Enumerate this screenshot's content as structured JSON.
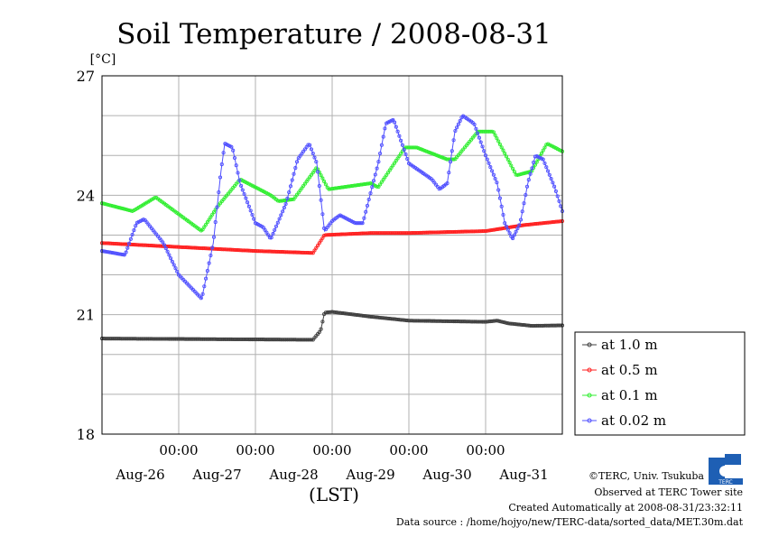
{
  "chart_data": {
    "type": "line",
    "title": "Soil Temperature / 2008-08-31",
    "y_unit": "[°C]",
    "xlabel": "(LST)",
    "ylim": [
      18,
      27
    ],
    "y_ticks": [
      "18",
      "21",
      "24",
      "27"
    ],
    "x_range_days": [
      0,
      6
    ],
    "x_time_labels": [
      "00:00",
      "00:00",
      "00:00",
      "00:00",
      "00:00"
    ],
    "x_date_labels": [
      "Aug-26",
      "Aug-27",
      "Aug-28",
      "Aug-29",
      "Aug-30",
      "Aug-31"
    ],
    "grid": true,
    "legend_position": "right",
    "series": [
      {
        "name": "at 1.0 m",
        "color": "#404040",
        "points": [
          [
            0.0,
            20.4
          ],
          [
            2.75,
            20.37
          ],
          [
            2.85,
            20.6
          ],
          [
            2.9,
            21.05
          ],
          [
            3.0,
            21.07
          ],
          [
            3.5,
            20.95
          ],
          [
            4.0,
            20.85
          ],
          [
            5.0,
            20.82
          ],
          [
            5.15,
            20.85
          ],
          [
            5.3,
            20.78
          ],
          [
            5.6,
            20.72
          ],
          [
            6.0,
            20.73
          ]
        ]
      },
      {
        "name": "at 0.5 m",
        "color": "#ff2020",
        "points": [
          [
            0.0,
            22.8
          ],
          [
            1.0,
            22.7
          ],
          [
            2.0,
            22.6
          ],
          [
            2.75,
            22.55
          ],
          [
            2.9,
            23.0
          ],
          [
            3.5,
            23.05
          ],
          [
            4.0,
            23.05
          ],
          [
            5.0,
            23.1
          ],
          [
            5.5,
            23.25
          ],
          [
            6.0,
            23.35
          ]
        ]
      },
      {
        "name": "at 0.1 m",
        "color": "#30ee30",
        "points": [
          [
            0.0,
            23.8
          ],
          [
            0.4,
            23.6
          ],
          [
            0.7,
            23.95
          ],
          [
            1.3,
            23.1
          ],
          [
            1.5,
            23.7
          ],
          [
            1.8,
            24.4
          ],
          [
            2.2,
            24.0
          ],
          [
            2.3,
            23.85
          ],
          [
            2.5,
            23.9
          ],
          [
            2.8,
            24.7
          ],
          [
            2.95,
            24.15
          ],
          [
            3.5,
            24.3
          ],
          [
            3.6,
            24.2
          ],
          [
            3.95,
            25.2
          ],
          [
            4.1,
            25.2
          ],
          [
            4.5,
            24.9
          ],
          [
            4.6,
            24.9
          ],
          [
            4.9,
            25.6
          ],
          [
            5.1,
            25.6
          ],
          [
            5.4,
            24.5
          ],
          [
            5.6,
            24.6
          ],
          [
            5.8,
            25.3
          ],
          [
            6.0,
            25.1
          ]
        ]
      },
      {
        "name": "at 0.02 m",
        "color": "#5050ff",
        "points": [
          [
            0.0,
            22.6
          ],
          [
            0.3,
            22.5
          ],
          [
            0.45,
            23.3
          ],
          [
            0.55,
            23.4
          ],
          [
            0.8,
            22.8
          ],
          [
            1.0,
            22.0
          ],
          [
            1.25,
            21.5
          ],
          [
            1.3,
            21.4
          ],
          [
            1.45,
            22.8
          ],
          [
            1.55,
            24.6
          ],
          [
            1.6,
            25.3
          ],
          [
            1.7,
            25.2
          ],
          [
            1.8,
            24.3
          ],
          [
            2.0,
            23.3
          ],
          [
            2.1,
            23.2
          ],
          [
            2.2,
            22.9
          ],
          [
            2.4,
            23.8
          ],
          [
            2.55,
            24.9
          ],
          [
            2.7,
            25.3
          ],
          [
            2.8,
            24.8
          ],
          [
            2.9,
            23.1
          ],
          [
            3.0,
            23.35
          ],
          [
            3.1,
            23.5
          ],
          [
            3.3,
            23.3
          ],
          [
            3.4,
            23.3
          ],
          [
            3.6,
            24.8
          ],
          [
            3.7,
            25.8
          ],
          [
            3.8,
            25.9
          ],
          [
            4.0,
            24.8
          ],
          [
            4.3,
            24.4
          ],
          [
            4.4,
            24.15
          ],
          [
            4.5,
            24.3
          ],
          [
            4.6,
            25.6
          ],
          [
            4.7,
            26.0
          ],
          [
            4.85,
            25.8
          ],
          [
            5.0,
            25.0
          ],
          [
            5.15,
            24.3
          ],
          [
            5.25,
            23.3
          ],
          [
            5.35,
            22.9
          ],
          [
            5.45,
            23.3
          ],
          [
            5.55,
            24.3
          ],
          [
            5.65,
            25.0
          ],
          [
            5.75,
            24.9
          ],
          [
            5.9,
            24.2
          ],
          [
            6.0,
            23.6
          ]
        ]
      }
    ]
  },
  "footer": {
    "copyright": "©TERC, Univ. Tsukuba",
    "observed": "Observed at TERC Tower site",
    "created": "Created Automatically at 2008-08-31/23:32:11",
    "source": "Data source : /home/hojyo/new/TERC-data/sorted_data/MET.30m.dat"
  },
  "logo": {
    "text": "TERC",
    "color": "#1e5fb4"
  }
}
